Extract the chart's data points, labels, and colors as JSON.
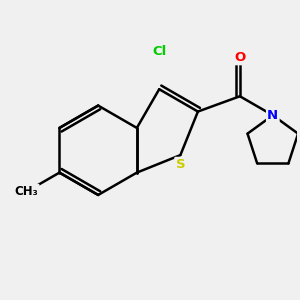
{
  "background_color": "#f0f0f0",
  "bond_color": "#000000",
  "atom_colors": {
    "Cl": "#00cc00",
    "S": "#cccc00",
    "O": "#ff0000",
    "N": "#0000ff",
    "C": "#000000"
  },
  "title": "",
  "figsize": [
    3.0,
    3.0
  ],
  "dpi": 100
}
